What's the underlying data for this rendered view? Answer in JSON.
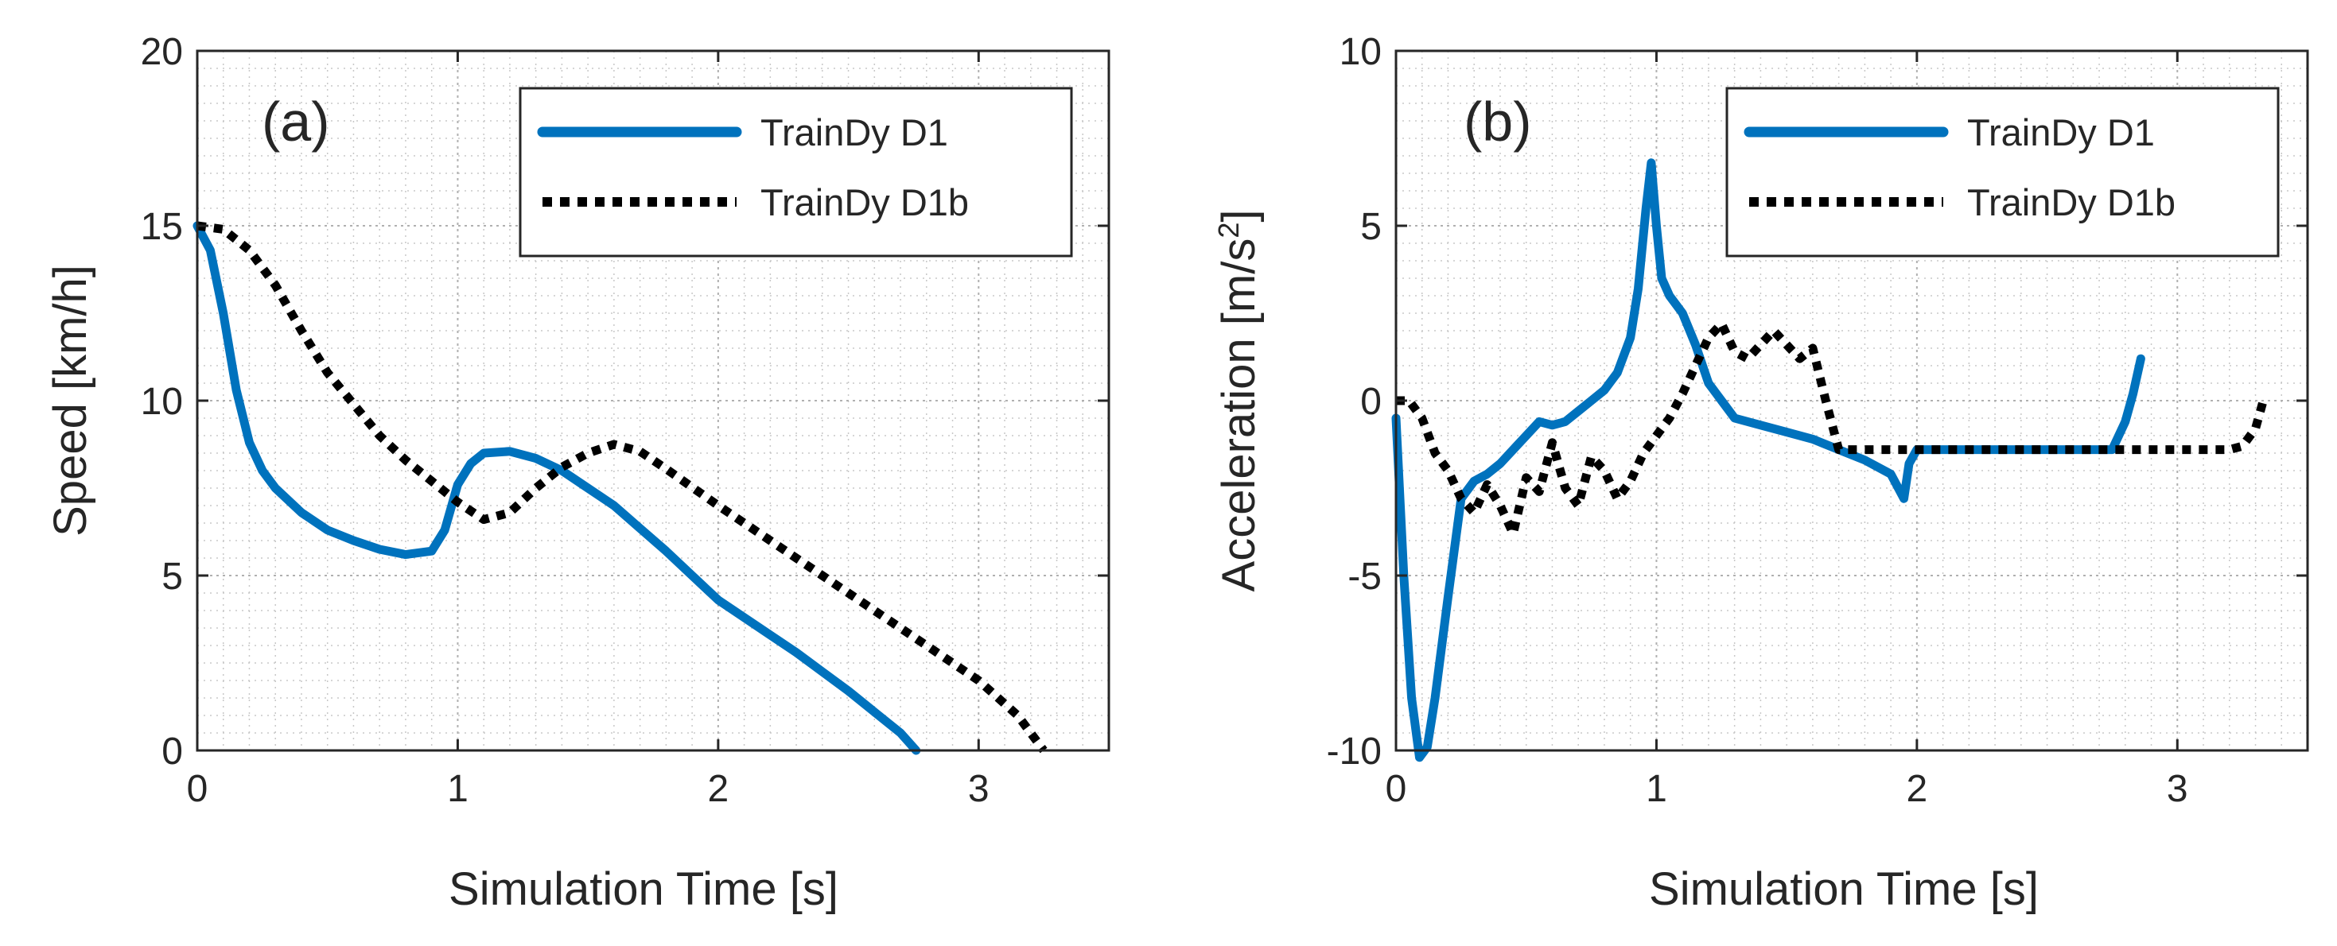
{
  "colors": {
    "d1": "#0072BD",
    "d1b": "#000000",
    "grid": "#c8c8c8",
    "axis": "#262626"
  },
  "chart_data": [
    {
      "type": "line",
      "panel_label": "(a)",
      "xlabel": "Simulation Time [s]",
      "ylabel": "Speed [km/h]",
      "ylabel_sup": "",
      "ylabel_tail": "",
      "xlim": [
        0,
        3.5
      ],
      "ylim": [
        0,
        20
      ],
      "xticks": [
        0,
        1,
        2,
        3
      ],
      "yticks": [
        0,
        5,
        10,
        15,
        20
      ],
      "grid": true,
      "minor_grid": true,
      "legend_position": "top-right",
      "series": [
        {
          "name": "TrainDy D1",
          "style": "solid",
          "x": [
            0,
            0.05,
            0.1,
            0.15,
            0.2,
            0.25,
            0.3,
            0.4,
            0.5,
            0.6,
            0.7,
            0.8,
            0.9,
            0.95,
            1.0,
            1.05,
            1.1,
            1.2,
            1.3,
            1.4,
            1.5,
            1.6,
            1.7,
            1.8,
            1.9,
            2.0,
            2.1,
            2.2,
            2.3,
            2.4,
            2.5,
            2.6,
            2.7,
            2.76
          ],
          "y": [
            15,
            14.3,
            12.5,
            10.3,
            8.8,
            8.0,
            7.5,
            6.8,
            6.3,
            6.0,
            5.75,
            5.6,
            5.7,
            6.3,
            7.6,
            8.2,
            8.5,
            8.55,
            8.35,
            8.0,
            7.5,
            7.0,
            6.35,
            5.7,
            5.0,
            4.3,
            3.8,
            3.3,
            2.8,
            2.25,
            1.7,
            1.1,
            0.5,
            0
          ]
        },
        {
          "name": "TrainDy D1b",
          "style": "dotted",
          "x": [
            0,
            0.1,
            0.2,
            0.3,
            0.4,
            0.5,
            0.6,
            0.7,
            0.8,
            0.9,
            1.0,
            1.1,
            1.2,
            1.3,
            1.4,
            1.5,
            1.6,
            1.7,
            1.8,
            2.0,
            2.2,
            2.4,
            2.6,
            2.8,
            3.0,
            3.15,
            3.25
          ],
          "y": [
            15,
            14.9,
            14.3,
            13.3,
            12.0,
            10.8,
            9.9,
            9.0,
            8.3,
            7.7,
            7.1,
            6.6,
            6.8,
            7.5,
            8.1,
            8.5,
            8.75,
            8.55,
            8.05,
            7.0,
            6.0,
            5.0,
            4.0,
            3.0,
            2.0,
            1.0,
            0
          ]
        }
      ]
    },
    {
      "type": "line",
      "panel_label": "(b)",
      "xlabel": "Simulation Time [s]",
      "ylabel": "Acceleration [m/s",
      "ylabel_sup": "2",
      "ylabel_tail": "]",
      "xlim": [
        0,
        3.5
      ],
      "ylim": [
        -10,
        10
      ],
      "xticks": [
        0,
        1,
        2,
        3
      ],
      "yticks": [
        -10,
        -5,
        0,
        5,
        10
      ],
      "grid": true,
      "minor_grid": true,
      "legend_position": "top-right",
      "series": [
        {
          "name": "TrainDy D1",
          "style": "solid",
          "x": [
            0,
            0.03,
            0.06,
            0.09,
            0.12,
            0.15,
            0.2,
            0.25,
            0.3,
            0.35,
            0.4,
            0.45,
            0.5,
            0.55,
            0.6,
            0.65,
            0.7,
            0.75,
            0.8,
            0.85,
            0.9,
            0.93,
            0.96,
            0.98,
            1.0,
            1.02,
            1.05,
            1.1,
            1.15,
            1.2,
            1.3,
            1.4,
            1.5,
            1.6,
            1.7,
            1.8,
            1.9,
            1.95,
            1.97,
            2.0,
            2.2,
            2.4,
            2.6,
            2.75,
            2.8,
            2.83,
            2.86
          ],
          "y": [
            -0.5,
            -5.0,
            -8.5,
            -10.2,
            -9.9,
            -8.5,
            -5.6,
            -2.8,
            -2.3,
            -2.1,
            -1.8,
            -1.4,
            -1.0,
            -0.6,
            -0.7,
            -0.6,
            -0.3,
            0.0,
            0.3,
            0.8,
            1.8,
            3.2,
            5.5,
            6.8,
            5.0,
            3.5,
            3.0,
            2.5,
            1.6,
            0.5,
            -0.5,
            -0.7,
            -0.9,
            -1.1,
            -1.4,
            -1.7,
            -2.1,
            -2.8,
            -1.8,
            -1.4,
            -1.4,
            -1.4,
            -1.4,
            -1.4,
            -0.6,
            0.2,
            1.2
          ]
        },
        {
          "name": "TrainDy D1b",
          "style": "dotted",
          "x": [
            0,
            0.05,
            0.1,
            0.15,
            0.2,
            0.25,
            0.3,
            0.35,
            0.4,
            0.45,
            0.5,
            0.55,
            0.6,
            0.65,
            0.7,
            0.75,
            0.8,
            0.85,
            0.9,
            0.95,
            1.0,
            1.05,
            1.1,
            1.15,
            1.2,
            1.25,
            1.3,
            1.35,
            1.4,
            1.45,
            1.5,
            1.55,
            1.6,
            1.65,
            1.7,
            2.0,
            2.5,
            3.0,
            3.2,
            3.25,
            3.3,
            3.33
          ],
          "y": [
            0.0,
            0.0,
            -0.5,
            -1.5,
            -2.0,
            -2.8,
            -3.2,
            -2.4,
            -3.0,
            -3.8,
            -2.2,
            -2.6,
            -1.2,
            -2.5,
            -3.0,
            -1.6,
            -2.0,
            -2.8,
            -2.3,
            -1.5,
            -1.0,
            -0.5,
            0.2,
            1.0,
            1.8,
            2.2,
            1.4,
            1.2,
            1.6,
            2.0,
            1.6,
            1.2,
            1.5,
            0.0,
            -1.4,
            -1.4,
            -1.4,
            -1.4,
            -1.4,
            -1.3,
            -0.8,
            0.0
          ]
        }
      ]
    }
  ]
}
